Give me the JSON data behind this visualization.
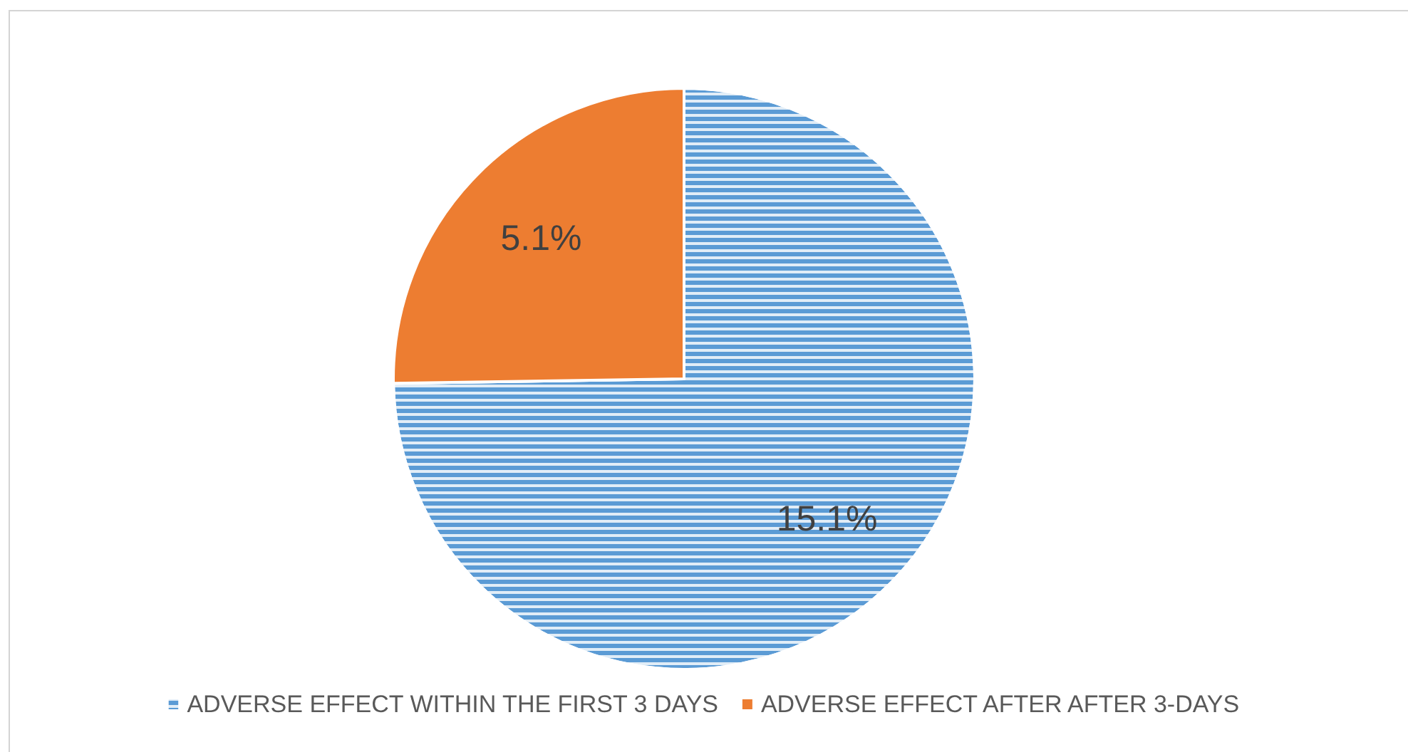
{
  "chart_data": {
    "type": "pie",
    "categories": [
      "ADVERSE EFFECT WITHIN THE FIRST 3 DAYS",
      "ADVERSE EFFECT AFTER AFTER 3-DAYS"
    ],
    "values": [
      15.1,
      5.1
    ],
    "colors": [
      "#5b9bd5",
      "#ed7d31"
    ],
    "value_labels": [
      "15.1%",
      "5.1%"
    ],
    "legend": "bottom"
  }
}
